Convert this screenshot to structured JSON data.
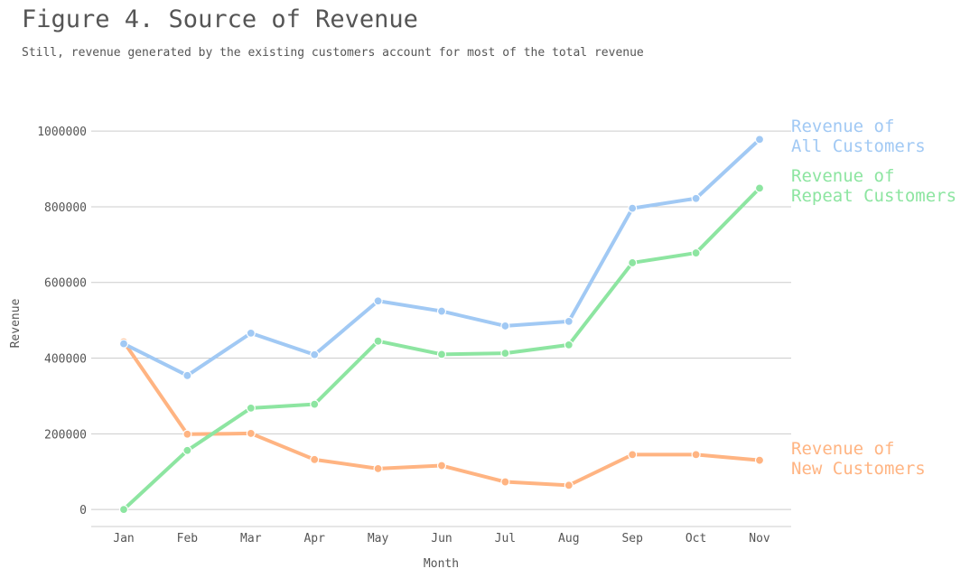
{
  "colors": {
    "all": "#a1c9f4",
    "repeat": "#8de5a1",
    "new": "#ffb482",
    "grid": "#cccccc",
    "axis_text": "#555555"
  },
  "chart_data": {
    "type": "line",
    "title": "Figure 4. Source of Revenue",
    "subtitle": "Still, revenue generated by the existing customers account for most of the total revenue",
    "xlabel": "Month",
    "ylabel": "Revenue",
    "categories": [
      "Jan",
      "Feb",
      "Mar",
      "Apr",
      "May",
      "Jun",
      "Jul",
      "Aug",
      "Sep",
      "Oct",
      "Nov"
    ],
    "ylim": [
      -45000,
      1060000
    ],
    "yticks": [
      0,
      200000,
      400000,
      600000,
      800000,
      1000000
    ],
    "grid": "horizontal",
    "legend": "right-end labels",
    "series": [
      {
        "key": "all",
        "label_lines": [
          "Revenue of",
          "All Customers"
        ],
        "values": [
          438000,
          354000,
          466000,
          409000,
          551000,
          524000,
          485000,
          497000,
          796000,
          822000,
          978000
        ]
      },
      {
        "key": "repeat",
        "label_lines": [
          "Revenue of",
          "Repeat Customers"
        ],
        "values": [
          0,
          156000,
          268000,
          278000,
          445000,
          410000,
          413000,
          435000,
          652000,
          678000,
          849000
        ]
      },
      {
        "key": "new",
        "label_lines": [
          "Revenue of",
          "New Customers"
        ],
        "values": [
          443000,
          199000,
          201000,
          132000,
          108000,
          116000,
          73000,
          64000,
          145000,
          145000,
          130000
        ]
      }
    ]
  }
}
